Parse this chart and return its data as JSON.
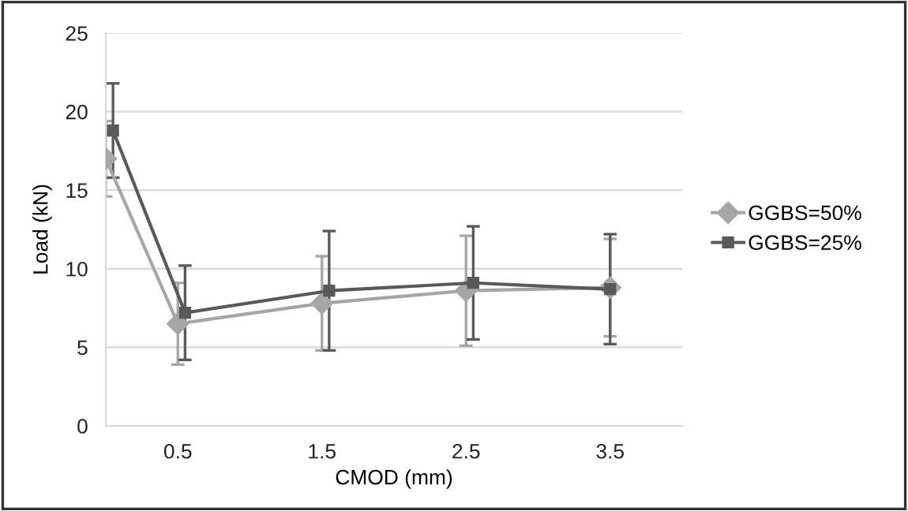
{
  "chart_data": {
    "type": "line",
    "xlabel": "CMOD (mm)",
    "ylabel": "Load (kN)",
    "xlim": [
      0,
      4
    ],
    "xticks": [
      0.5,
      1.5,
      2.5,
      3.5
    ],
    "ylim": [
      0,
      25
    ],
    "yticks": [
      0,
      5,
      10,
      15,
      20,
      25
    ],
    "grid": "y",
    "legend": "right",
    "series": [
      {
        "name": "GGBS=50%",
        "color": "#a6a6a6",
        "marker": "diamond",
        "x": [
          0,
          0.5,
          1.5,
          2.5,
          3.5
        ],
        "values": [
          17.0,
          6.5,
          7.8,
          8.6,
          8.8
        ],
        "errors": [
          2.4,
          2.6,
          3.0,
          3.5,
          3.1
        ]
      },
      {
        "name": "GGBS=25%",
        "color": "#595959",
        "marker": "square",
        "x": [
          0.05,
          0.55,
          1.55,
          2.55,
          3.5
        ],
        "values": [
          18.8,
          7.2,
          8.6,
          9.1,
          8.7
        ],
        "errors": [
          3.0,
          3.0,
          3.8,
          3.6,
          3.5
        ]
      }
    ]
  }
}
